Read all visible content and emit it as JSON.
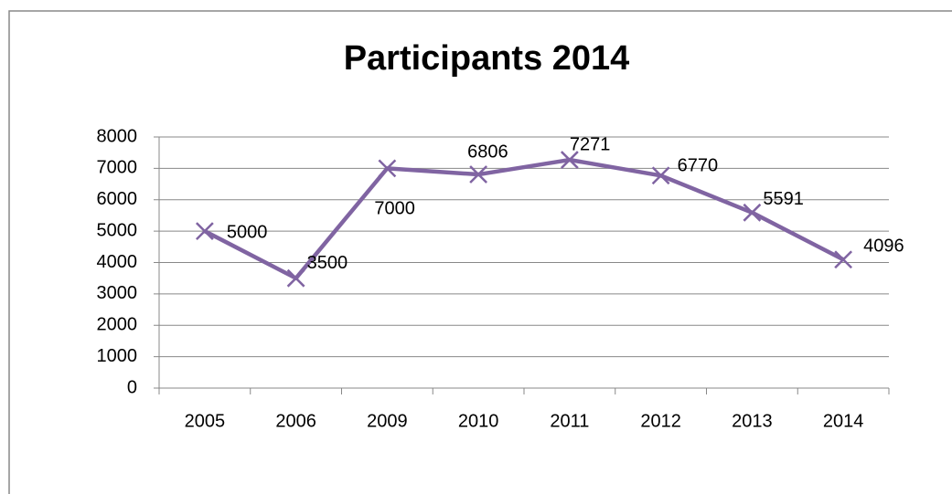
{
  "chart_data": {
    "type": "line",
    "title": "Participants 2014",
    "categories": [
      "2005",
      "2006",
      "2009",
      "2010",
      "2011",
      "2012",
      "2013",
      "2014"
    ],
    "series": [
      {
        "name": "Participants",
        "color": "#8064a2",
        "values": [
          5000,
          3500,
          7000,
          6806,
          7271,
          6770,
          5591,
          4096
        ]
      }
    ],
    "ylim": [
      0,
      8000
    ],
    "yticks": [
      0,
      1000,
      2000,
      3000,
      4000,
      5000,
      6000,
      7000,
      8000
    ],
    "grid": true
  }
}
